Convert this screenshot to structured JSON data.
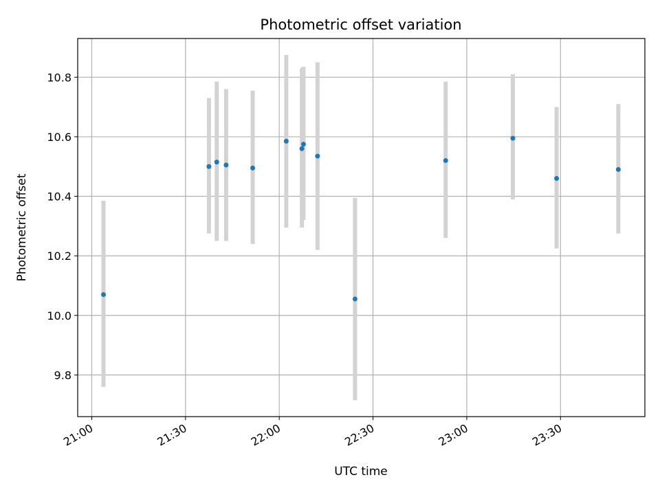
{
  "chart_data": {
    "type": "scatter",
    "title": "Photometric offset variation",
    "xlabel": "UTC time",
    "ylabel": "Photometric offset",
    "xlim": [
      "20:55:30",
      "23:57:00"
    ],
    "ylim": [
      9.66,
      10.93
    ],
    "xticks": [
      "21:00",
      "21:30",
      "22:00",
      "22:30",
      "23:00",
      "23:30"
    ],
    "yticks": [
      "9.8",
      "10.0",
      "10.2",
      "10.4",
      "10.6",
      "10.8"
    ],
    "grid": true,
    "marker_color": "#1f77b4",
    "errorbar_color": "#d3d3d3",
    "points": [
      {
        "x": "21:03:45",
        "y": 10.07,
        "err_low": 9.76,
        "err_high": 10.385
      },
      {
        "x": "21:37:30",
        "y": 10.5,
        "err_low": 10.275,
        "err_high": 10.73
      },
      {
        "x": "21:40:00",
        "y": 10.515,
        "err_low": 10.25,
        "err_high": 10.785
      },
      {
        "x": "21:43:00",
        "y": 10.505,
        "err_low": 10.25,
        "err_high": 10.76
      },
      {
        "x": "21:51:30",
        "y": 10.495,
        "err_low": 10.24,
        "err_high": 10.755
      },
      {
        "x": "22:02:15",
        "y": 10.585,
        "err_low": 10.295,
        "err_high": 10.875
      },
      {
        "x": "22:07:15",
        "y": 10.56,
        "err_low": 10.295,
        "err_high": 10.83
      },
      {
        "x": "22:07:45",
        "y": 10.575,
        "err_low": 10.32,
        "err_high": 10.835
      },
      {
        "x": "22:12:15",
        "y": 10.535,
        "err_low": 10.22,
        "err_high": 10.85
      },
      {
        "x": "22:24:15",
        "y": 10.055,
        "err_low": 9.715,
        "err_high": 10.395
      },
      {
        "x": "22:53:15",
        "y": 10.52,
        "err_low": 10.26,
        "err_high": 10.785
      },
      {
        "x": "23:14:45",
        "y": 10.595,
        "err_low": 10.39,
        "err_high": 10.81
      },
      {
        "x": "23:28:45",
        "y": 10.46,
        "err_low": 10.225,
        "err_high": 10.7
      },
      {
        "x": "23:48:30",
        "y": 10.49,
        "err_low": 10.275,
        "err_high": 10.71
      }
    ]
  }
}
